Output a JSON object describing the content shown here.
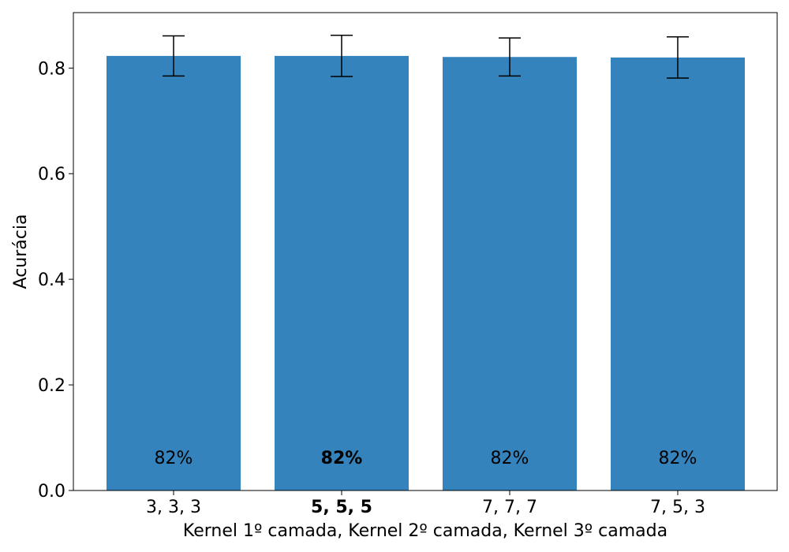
{
  "chart_data": {
    "type": "bar",
    "categories": [
      "3, 3, 3",
      "5, 5, 5",
      "7, 7, 7",
      "7, 5, 3"
    ],
    "highlight_index": 1,
    "values": [
      0.823,
      0.823,
      0.821,
      0.82
    ],
    "error": [
      0.038,
      0.039,
      0.036,
      0.039
    ],
    "data_labels": [
      "82%",
      "82%",
      "82%",
      "82%"
    ],
    "title": "",
    "xlabel": "Kernel 1º camada, Kernel 2º camada, Kernel 3º camada",
    "ylabel": "Acurácia",
    "ylim": [
      0,
      0.905
    ],
    "yticks": [
      0.0,
      0.2,
      0.4,
      0.6,
      0.8
    ],
    "ytick_labels": [
      "0.0",
      "0.2",
      "0.4",
      "0.6",
      "0.8"
    ],
    "grid": false,
    "bar_color": "#3583bc",
    "error_color": "#000000"
  }
}
